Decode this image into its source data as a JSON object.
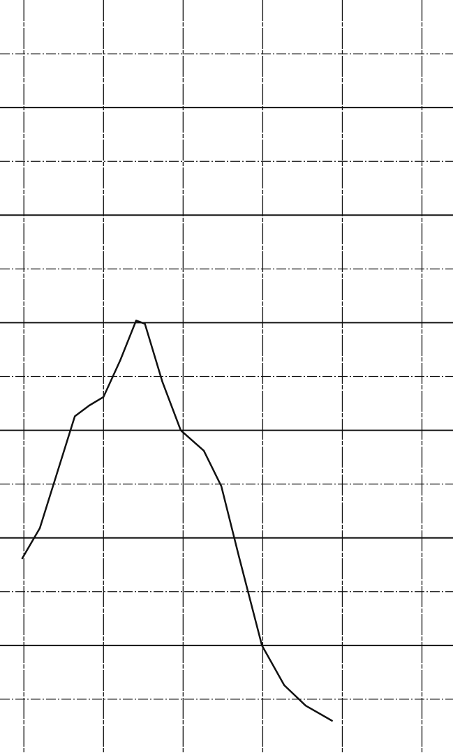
{
  "chart_data": {
    "type": "line",
    "x": [
      -0.02,
      0.2,
      0.42,
      0.64,
      0.82,
      1.0,
      1.21,
      1.41,
      1.52,
      1.74,
      1.97,
      2.26,
      2.48,
      2.7,
      2.99,
      3.27,
      3.54,
      3.87
    ],
    "values": [
      1.81,
      2.09,
      2.61,
      3.13,
      3.23,
      3.31,
      3.65,
      4.02,
      3.99,
      3.45,
      3.0,
      2.81,
      2.48,
      1.83,
      1.0,
      0.63,
      0.44,
      0.3
    ],
    "color": "#111111",
    "xlim": [
      -0.3,
      5.39
    ],
    "ylim": [
      0,
      7
    ],
    "xticks": [
      0,
      1,
      2,
      3,
      4,
      5
    ],
    "yticks": [
      0.5,
      1,
      1.5,
      2,
      2.5,
      3,
      3.5,
      4,
      4.5,
      5,
      5.5,
      6,
      6.5
    ],
    "grid": true
  }
}
